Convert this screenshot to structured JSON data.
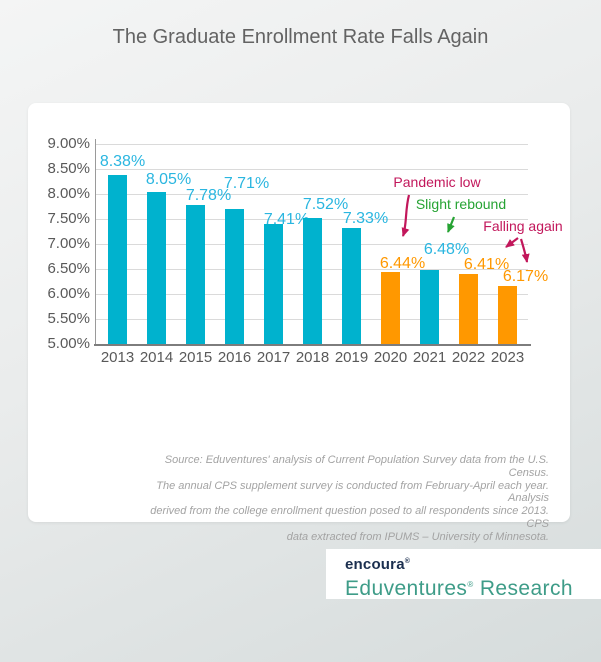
{
  "title": "The Graduate Enrollment Rate Falls Again",
  "chart_data": {
    "type": "bar",
    "title": "The Graduate Enrollment Rate Falls Again",
    "categories": [
      "2013",
      "2014",
      "2015",
      "2016",
      "2017",
      "2018",
      "2019",
      "2020",
      "2021",
      "2022",
      "2023"
    ],
    "values": [
      8.38,
      8.05,
      7.78,
      7.71,
      7.41,
      7.52,
      7.33,
      6.44,
      6.48,
      6.41,
      6.17
    ],
    "value_labels": [
      "8.38%",
      "8.05%",
      "7.78%",
      "7.71%",
      "7.41%",
      "7.52%",
      "7.33%",
      "6.44%",
      "6.48%",
      "6.41%",
      "6.17%"
    ],
    "bar_colors": [
      "#00B2CE",
      "#00B2CE",
      "#00B2CE",
      "#00B2CE",
      "#00B2CE",
      "#00B2CE",
      "#00B2CE",
      "#FF9800",
      "#00B2CE",
      "#FF9800",
      "#FF9800"
    ],
    "label_colors": [
      "#2AB6E0",
      "#2AB6E0",
      "#2AB6E0",
      "#2AB6E0",
      "#2AB6E0",
      "#2AB6E0",
      "#2AB6E0",
      "#FF9800",
      "#2AB6E0",
      "#FF9800",
      "#FF9800"
    ],
    "yticks": [
      "9.00%",
      "8.50%",
      "8.00%",
      "7.50%",
      "7.00%",
      "6.50%",
      "6.00%",
      "5.50%",
      "5.00%"
    ],
    "ylim": [
      5.0,
      9.0
    ],
    "ytick_step": 0.5,
    "grid": true,
    "legend": "none",
    "annotations": [
      {
        "text": "Pandemic low",
        "color": "#C2175B",
        "targets": [
          "2020"
        ]
      },
      {
        "text": "Slight rebound",
        "color": "#26A333",
        "targets": [
          "2021"
        ]
      },
      {
        "text": "Falling again",
        "color": "#C2175B",
        "targets": [
          "2022",
          "2023"
        ]
      }
    ]
  },
  "source_note": {
    "text": "Source: Eduventures' analysis of Current Population Survey data from the U.S. Census.\nThe annual CPS supplement survey is conducted from February-April each year. Analysis\nderived from the college enrollment question posed to all respondents since 2013. CPS\ndata extracted from IPUMS – University of Minnesota."
  },
  "logo": {
    "brand": "encoura",
    "brand_reg": "®",
    "brand_color": "#1B2F4F",
    "sub_name": "Eduventures",
    "sub_reg": "®",
    "sub_rest": " Research",
    "sub_color": "#3E9C88"
  }
}
